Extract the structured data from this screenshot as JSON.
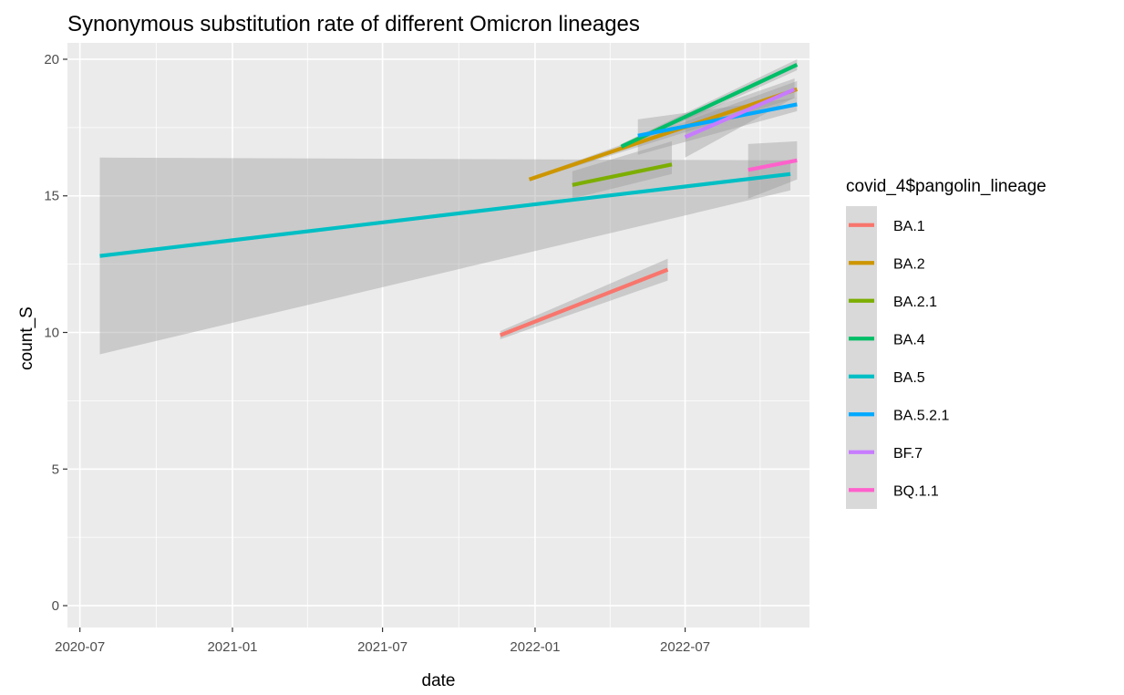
{
  "chart_data": {
    "type": "line",
    "title": "Synonymous substitution rate of different Omicron lineages",
    "xlabel": "date",
    "ylabel": "count_S",
    "xlim": [
      "2020-06-16",
      "2022-11-28"
    ],
    "ylim": [
      -0.8,
      20.6
    ],
    "x_ticks": [
      "2020-07-01",
      "2021-01-01",
      "2021-07-01",
      "2022-01-01",
      "2022-07-01"
    ],
    "x_tick_labels": [
      "2020-07",
      "2021-01",
      "2021-07",
      "2022-01",
      "2022-07"
    ],
    "y_ticks": [
      0,
      5,
      10,
      15,
      20
    ],
    "y_tick_labels": [
      "0",
      "5",
      "10",
      "15",
      "20"
    ],
    "grid": true,
    "legend": {
      "title": "covid_4$pangolin_lineage",
      "position": "right"
    },
    "series": [
      {
        "name": "BA.1",
        "color": "#F8766D",
        "x": [
          "2021-11-20",
          "2022-06-10"
        ],
        "y": [
          9.9,
          12.3
        ],
        "band_lower": [
          9.75,
          11.9
        ],
        "band_upper": [
          10.05,
          12.7
        ]
      },
      {
        "name": "BA.2",
        "color": "#CD9600",
        "x": [
          "2021-12-25",
          "2022-11-13"
        ],
        "y": [
          15.6,
          18.9
        ],
        "band_lower": [
          15.55,
          18.6
        ],
        "band_upper": [
          15.65,
          19.2
        ]
      },
      {
        "name": "BA.2.1",
        "color": "#7CAE00",
        "x": [
          "2022-02-15",
          "2022-06-15"
        ],
        "y": [
          15.4,
          16.15
        ],
        "band_lower": [
          14.9,
          15.8
        ],
        "band_upper": [
          15.9,
          17.0
        ]
      },
      {
        "name": "BA.4",
        "color": "#00BE67",
        "x": [
          "2022-04-15",
          "2022-11-13"
        ],
        "y": [
          16.8,
          19.8
        ],
        "band_lower": [
          16.7,
          19.6
        ],
        "band_upper": [
          16.9,
          20.0
        ]
      },
      {
        "name": "BA.5",
        "color": "#00BFC4",
        "x": [
          "2020-07-25",
          "2022-11-05"
        ],
        "y": [
          12.8,
          15.8
        ],
        "band_lower": [
          9.2,
          15.2
        ],
        "band_upper": [
          16.4,
          16.3
        ]
      },
      {
        "name": "BA.5.2.1",
        "color": "#00A9FF",
        "x": [
          "2022-05-05",
          "2022-11-13"
        ],
        "y": [
          17.2,
          18.35
        ],
        "band_lower": [
          16.5,
          18.1
        ],
        "band_upper": [
          17.8,
          18.6
        ]
      },
      {
        "name": "BF.7",
        "color": "#C77CFF",
        "x": [
          "2022-07-01",
          "2022-11-10"
        ],
        "y": [
          17.15,
          18.9
        ],
        "band_lower": [
          16.4,
          18.6
        ],
        "band_upper": [
          17.9,
          19.3
        ]
      },
      {
        "name": "BQ.1.1",
        "color": "#FF61CC",
        "x": [
          "2022-09-15",
          "2022-11-13"
        ],
        "y": [
          15.95,
          16.3
        ],
        "band_lower": [
          14.9,
          15.6
        ],
        "band_upper": [
          16.9,
          17.0
        ]
      }
    ]
  }
}
